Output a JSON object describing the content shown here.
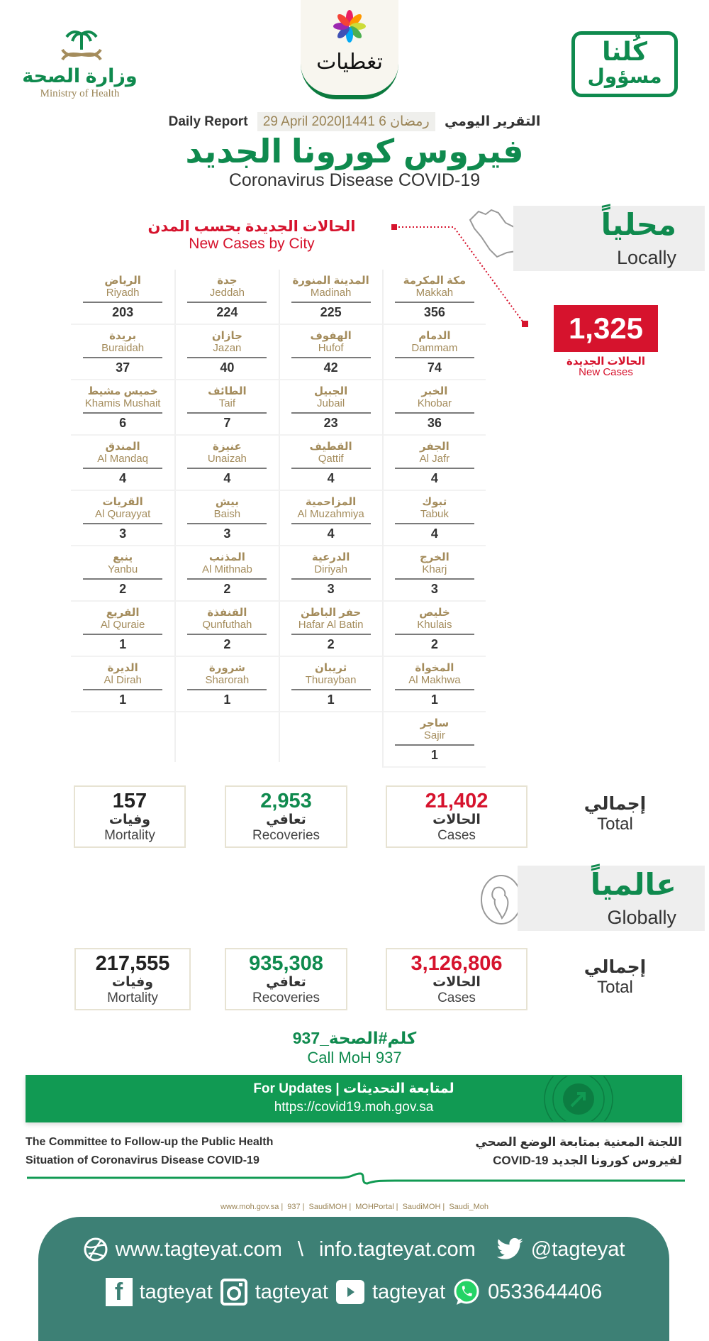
{
  "logos": {
    "moh_ar": "وزارة الصحة",
    "moh_en": "Ministry of Health",
    "tagteyat": "تغطيات",
    "kulluna_1": "كُلنا",
    "kulluna_2": "مسؤول"
  },
  "header": {
    "daily_ar": "التقرير اليومي",
    "date": "29 April 2020|1441 رمضان 6",
    "daily_en": "Daily Report",
    "title_ar": "فيروس كورونا الجديد",
    "title_en": "Coronavirus Disease COVID-19"
  },
  "locally": {
    "ar": "محلياً",
    "en": "Locally",
    "by_city_ar": "الحالات الجديدة بحسب المدن",
    "by_city_en": "New Cases by City",
    "new_cases": "1,325",
    "new_cases_ar": "الحالات الجديدة",
    "new_cases_en": "New Cases"
  },
  "cities": [
    {
      "ar": "مكة المكرمة",
      "en": "Makkah",
      "n": "356"
    },
    {
      "ar": "المدينة المنورة",
      "en": "Madinah",
      "n": "225"
    },
    {
      "ar": "جدة",
      "en": "Jeddah",
      "n": "224"
    },
    {
      "ar": "الرياض",
      "en": "Riyadh",
      "n": "203"
    },
    {
      "ar": "الدمام",
      "en": "Dammam",
      "n": "74"
    },
    {
      "ar": "الهفوف",
      "en": "Hufof",
      "n": "42"
    },
    {
      "ar": "جازان",
      "en": "Jazan",
      "n": "40"
    },
    {
      "ar": "بريدة",
      "en": "Buraidah",
      "n": "37"
    },
    {
      "ar": "الخبر",
      "en": "Khobar",
      "n": "36"
    },
    {
      "ar": "الجبيل",
      "en": "Jubail",
      "n": "23"
    },
    {
      "ar": "الطائف",
      "en": "Taif",
      "n": "7"
    },
    {
      "ar": "خميس مشيط",
      "en": "Khamis Mushait",
      "n": "6"
    },
    {
      "ar": "الجفر",
      "en": "Al Jafr",
      "n": "4"
    },
    {
      "ar": "القطيف",
      "en": "Qattif",
      "n": "4"
    },
    {
      "ar": "عنيزة",
      "en": "Unaizah",
      "n": "4"
    },
    {
      "ar": "المندق",
      "en": "Al Mandaq",
      "n": "4"
    },
    {
      "ar": "تبوك",
      "en": "Tabuk",
      "n": "4"
    },
    {
      "ar": "المزاحمية",
      "en": "Al Muzahmiya",
      "n": "4"
    },
    {
      "ar": "بيش",
      "en": "Baish",
      "n": "3"
    },
    {
      "ar": "القريات",
      "en": "Al Qurayyat",
      "n": "3"
    },
    {
      "ar": "الخرج",
      "en": "Kharj",
      "n": "3"
    },
    {
      "ar": "الدرعية",
      "en": "Diriyah",
      "n": "3"
    },
    {
      "ar": "المذنب",
      "en": "Al Mithnab",
      "n": "2"
    },
    {
      "ar": "ينبع",
      "en": "Yanbu",
      "n": "2"
    },
    {
      "ar": "خليص",
      "en": "Khulais",
      "n": "2"
    },
    {
      "ar": "حفر الباطن",
      "en": "Hafar Al Batin",
      "n": "2"
    },
    {
      "ar": "القنفذة",
      "en": "Qunfuthah",
      "n": "2"
    },
    {
      "ar": "القريع",
      "en": "Al Quraie",
      "n": "1"
    },
    {
      "ar": "المخواة",
      "en": "Al Makhwa",
      "n": "1"
    },
    {
      "ar": "ثريبان",
      "en": "Thurayban",
      "n": "1"
    },
    {
      "ar": "شرورة",
      "en": "Sharorah",
      "n": "1"
    },
    {
      "ar": "الديرة",
      "en": "Al Dirah",
      "n": "1"
    },
    {
      "ar": "ساجر",
      "en": "Sajir",
      "n": "1"
    }
  ],
  "local_totals": {
    "total_ar": "إجمالي",
    "total_en": "Total",
    "cases": "21,402",
    "cases_ar": "الحالات",
    "cases_en": "Cases",
    "recoveries": "2,953",
    "recoveries_ar": "تعافي",
    "recoveries_en": "Recoveries",
    "mortality": "157",
    "mortality_ar": "وفيات",
    "mortality_en": "Mortality"
  },
  "globally": {
    "ar": "عالمياً",
    "en": "Globally"
  },
  "global_totals": {
    "total_ar": "إجمالي",
    "total_en": "Total",
    "cases": "3,126,806",
    "cases_ar": "الحالات",
    "cases_en": "Cases",
    "recoveries": "935,308",
    "recoveries_ar": "تعافي",
    "recoveries_en": "Recoveries",
    "mortality": "217,555",
    "mortality_ar": "وفيات",
    "mortality_en": "Mortality"
  },
  "call": {
    "ar": "كلم#الصحة_937",
    "en": "Call MoH 937"
  },
  "updates": {
    "line1": "For Updates  |  لمتابعة التحديثات",
    "url": "https://covid19.moh.gov.sa"
  },
  "committee": {
    "en1": "The Committee to Follow-up the Public Health",
    "en2": "Situation of Coronavirus Disease COVID-19",
    "ar1": "اللجنة المعنية بمتابعة الوضع الصحي",
    "ar2": "لفيروس كورونا الجديد COVID-19"
  },
  "social": [
    "www.moh.gov.sa",
    "937",
    "SaudiMOH",
    "MOHPortal",
    "SaudiMOH",
    "Saudi_Moh"
  ],
  "footer": {
    "website": "www.tagteyat.com",
    "sep": "\\",
    "email": "info.tagteyat.com",
    "twitter": "@tagteyat",
    "facebook": "tagteyat",
    "instagram": "tagteyat",
    "youtube": "tagteyat",
    "whatsapp": "0533644406"
  },
  "colors": {
    "green": "#0f8a4e",
    "red": "#d6132d",
    "gold": "#a48c5c",
    "footer": "#3d8075",
    "banner": "#119a53"
  }
}
